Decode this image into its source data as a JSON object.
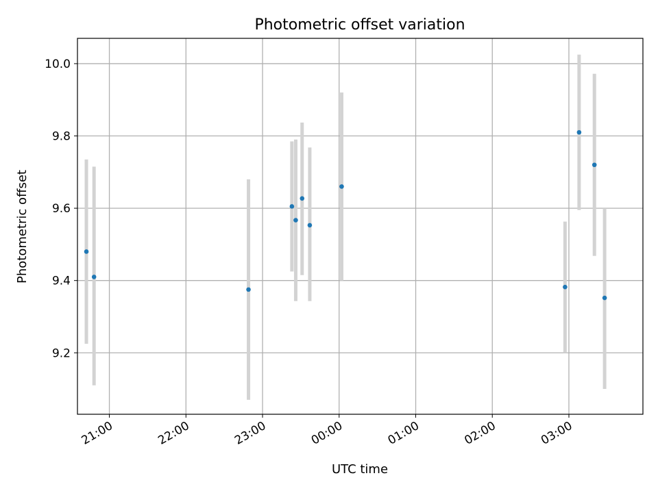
{
  "chart_data": {
    "type": "scatter",
    "title": "Photometric offset variation",
    "xlabel": "UTC time",
    "ylabel": "Photometric offset",
    "x_axis_type": "time",
    "xlim": [
      "20:35",
      "03:58"
    ],
    "ylim": [
      9.03,
      10.07
    ],
    "x_ticks": [
      "21:00",
      "22:00",
      "23:00",
      "00:00",
      "01:00",
      "02:00",
      "03:00"
    ],
    "y_ticks": [
      "9.2",
      "9.4",
      "9.6",
      "9.8",
      "10.0"
    ],
    "grid": true,
    "point_color": "#1f77b4",
    "errorbar_color": "#d3d3d3",
    "points": [
      {
        "time": "20:42",
        "y": 9.48,
        "y_low": 9.225,
        "y_high": 9.735
      },
      {
        "time": "20:48",
        "y": 9.41,
        "y_low": 9.11,
        "y_high": 9.715
      },
      {
        "time": "22:49",
        "y": 9.375,
        "y_low": 9.07,
        "y_high": 9.68
      },
      {
        "time": "23:23",
        "y": 9.605,
        "y_low": 9.425,
        "y_high": 9.785
      },
      {
        "time": "23:26",
        "y": 9.567,
        "y_low": 9.343,
        "y_high": 9.79
      },
      {
        "time": "23:31",
        "y": 9.627,
        "y_low": 9.415,
        "y_high": 9.837
      },
      {
        "time": "23:37",
        "y": 9.553,
        "y_low": 9.343,
        "y_high": 9.768
      },
      {
        "time": "00:02",
        "y": 9.66,
        "y_low": 9.4,
        "y_high": 9.92
      },
      {
        "time": "02:57",
        "y": 9.382,
        "y_low": 9.2,
        "y_high": 9.563
      },
      {
        "time": "03:08",
        "y": 9.81,
        "y_low": 9.595,
        "y_high": 10.025
      },
      {
        "time": "03:20",
        "y": 9.72,
        "y_low": 9.468,
        "y_high": 9.972
      },
      {
        "time": "03:28",
        "y": 9.352,
        "y_low": 9.1,
        "y_high": 9.6
      }
    ]
  }
}
